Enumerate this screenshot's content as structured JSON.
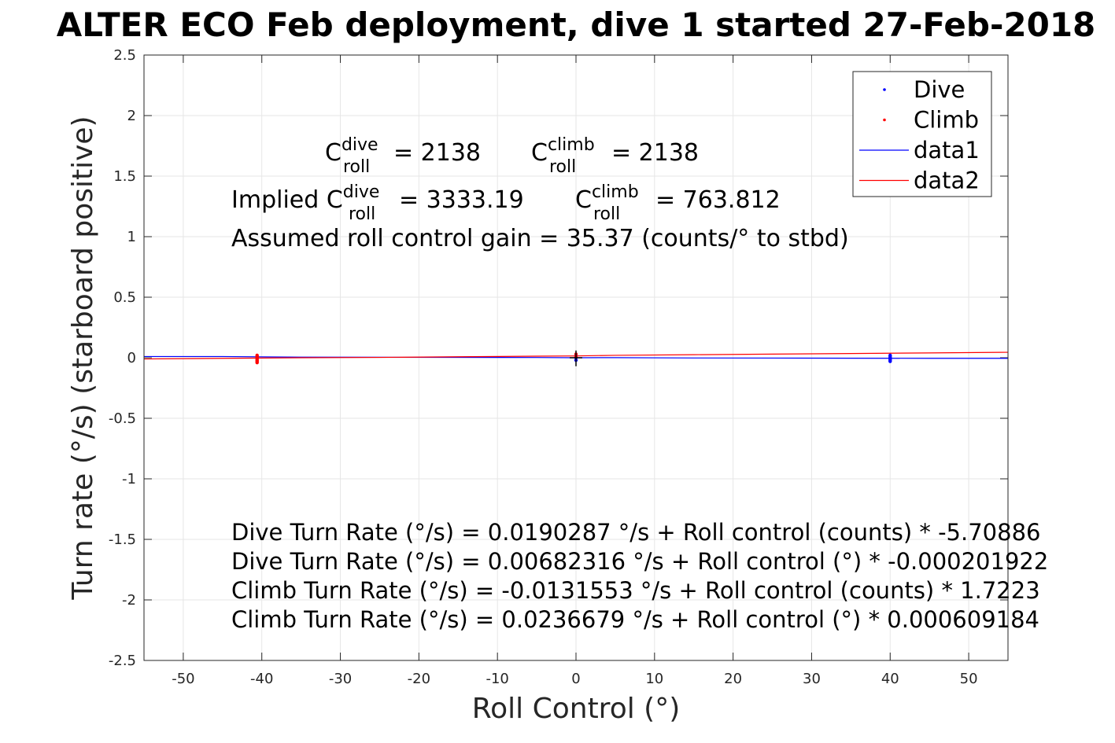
{
  "chart_data": {
    "type": "line",
    "title": "ALTER ECO Feb deployment, dive 1 started 27-Feb-2018",
    "xlabel": "Roll Control (°)",
    "ylabel": "Turn rate (°/s) (starboard positive)",
    "xlim": [
      -55,
      55
    ],
    "ylim": [
      -2.5,
      2.5
    ],
    "xticks": [
      -50,
      -40,
      -30,
      -20,
      -10,
      0,
      10,
      20,
      30,
      40,
      50
    ],
    "yticks": [
      -2.5,
      -2,
      -1.5,
      -1,
      -0.5,
      0,
      0.5,
      1,
      1.5,
      2,
      2.5
    ],
    "xtick_labels": [
      "-50",
      "-40",
      "-30",
      "-20",
      "-10",
      "0",
      "10",
      "20",
      "30",
      "40",
      "50"
    ],
    "ytick_labels": [
      "-2.5",
      "-2",
      "-1.5",
      "-1",
      "-0.5",
      "0",
      "0.5",
      "1",
      "1.5",
      "2",
      "2.5"
    ],
    "grid": true,
    "legend_position": "top-right",
    "legend": [
      {
        "label": "Dive",
        "kind": "marker",
        "color": "#0000ff"
      },
      {
        "label": "Climb",
        "kind": "marker",
        "color": "#ff0000"
      },
      {
        "label": "data1",
        "kind": "line",
        "color": "#0000ff"
      },
      {
        "label": "data2",
        "kind": "line",
        "color": "#ff0000"
      }
    ],
    "series": [
      {
        "name": "Dive",
        "kind": "scatter",
        "color": "#0000ff",
        "points": [
          [
            40,
            -0.03
          ],
          [
            40,
            -0.02
          ],
          [
            40,
            -0.01
          ],
          [
            40,
            0.0
          ],
          [
            40,
            0.01
          ],
          [
            40,
            0.02
          ],
          [
            0,
            -0.02
          ],
          [
            0,
            0.0
          ],
          [
            0,
            0.02
          ]
        ]
      },
      {
        "name": "Climb",
        "kind": "scatter",
        "color": "#ff0000",
        "points": [
          [
            -40.6,
            -0.04
          ],
          [
            -40.6,
            -0.03
          ],
          [
            -40.6,
            -0.02
          ],
          [
            -40.6,
            -0.01
          ],
          [
            -40.6,
            0.0
          ],
          [
            -40.6,
            0.01
          ],
          [
            -40.6,
            0.02
          ],
          [
            0,
            0.01
          ],
          [
            0,
            0.03
          ]
        ]
      },
      {
        "name": "data1",
        "kind": "line",
        "color": "#0000ff",
        "x": [
          -55,
          -45,
          -35,
          -25,
          -15,
          -5,
          0,
          5,
          15,
          25,
          35,
          45,
          55
        ],
        "y": [
          0.01,
          0.01,
          0.005,
          0.004,
          0.003,
          0.002,
          0.0,
          0.001,
          -0.002,
          -0.003,
          -0.004,
          -0.005,
          -0.005
        ]
      },
      {
        "name": "data2",
        "kind": "line",
        "color": "#ff0000",
        "x": [
          -55,
          -45,
          -35,
          -25,
          -15,
          -5,
          0,
          5,
          15,
          25,
          35,
          45,
          55
        ],
        "y": [
          -0.01,
          -0.005,
          0.0,
          0.003,
          0.008,
          0.013,
          0.015,
          0.02,
          0.025,
          0.03,
          0.035,
          0.04,
          0.045
        ]
      }
    ],
    "annotations": {
      "c_roll_dive": {
        "symbol": "C",
        "sup": "dive",
        "sub": "roll",
        "text": "= 2138"
      },
      "c_roll_climb": {
        "symbol": "C",
        "sup": "climb",
        "sub": "roll",
        "text": "= 2138"
      },
      "implied_prefix": "Implied C",
      "implied_dive": {
        "sup": "dive",
        "sub": "roll",
        "text": "= 3333.19"
      },
      "implied_climb": {
        "symbol": "C",
        "sup": "climb",
        "sub": "roll",
        "text": "= 763.812"
      },
      "gain_line": "Assumed roll control gain = 35.37 (counts/° to stbd)",
      "equations": [
        "Dive Turn Rate (°/s) = 0.0190287 °/s + Roll control (counts) * -5.70886",
        "Dive Turn Rate (°/s) = 0.00682316 °/s + Roll control (°) * -0.000201922",
        "Climb Turn Rate (°/s) = -0.0131553 °/s + Roll control (counts) * 1.7223",
        "Climb Turn Rate (°/s) = 0.0236679 °/s + Roll control (°) * 0.000609184"
      ]
    }
  }
}
